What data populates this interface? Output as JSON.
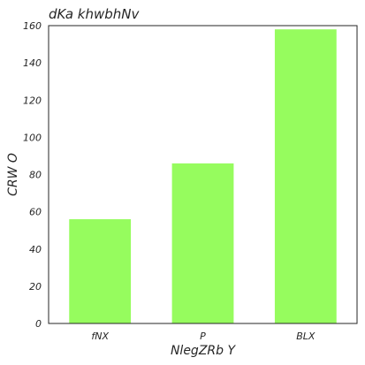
{
  "chart_data": {
    "type": "bar",
    "title": "dKa khwbhNv",
    "xlabel": "NlegZRb Y",
    "ylabel": "CRW O",
    "categories": [
      "fNX",
      "P",
      "BLX"
    ],
    "values": [
      56,
      86,
      158
    ],
    "ylim": [
      0,
      160
    ],
    "yticks": [
      0,
      20,
      40,
      60,
      80,
      100,
      120,
      140,
      160
    ],
    "bar_color": "#96fc5e",
    "grid": false
  }
}
